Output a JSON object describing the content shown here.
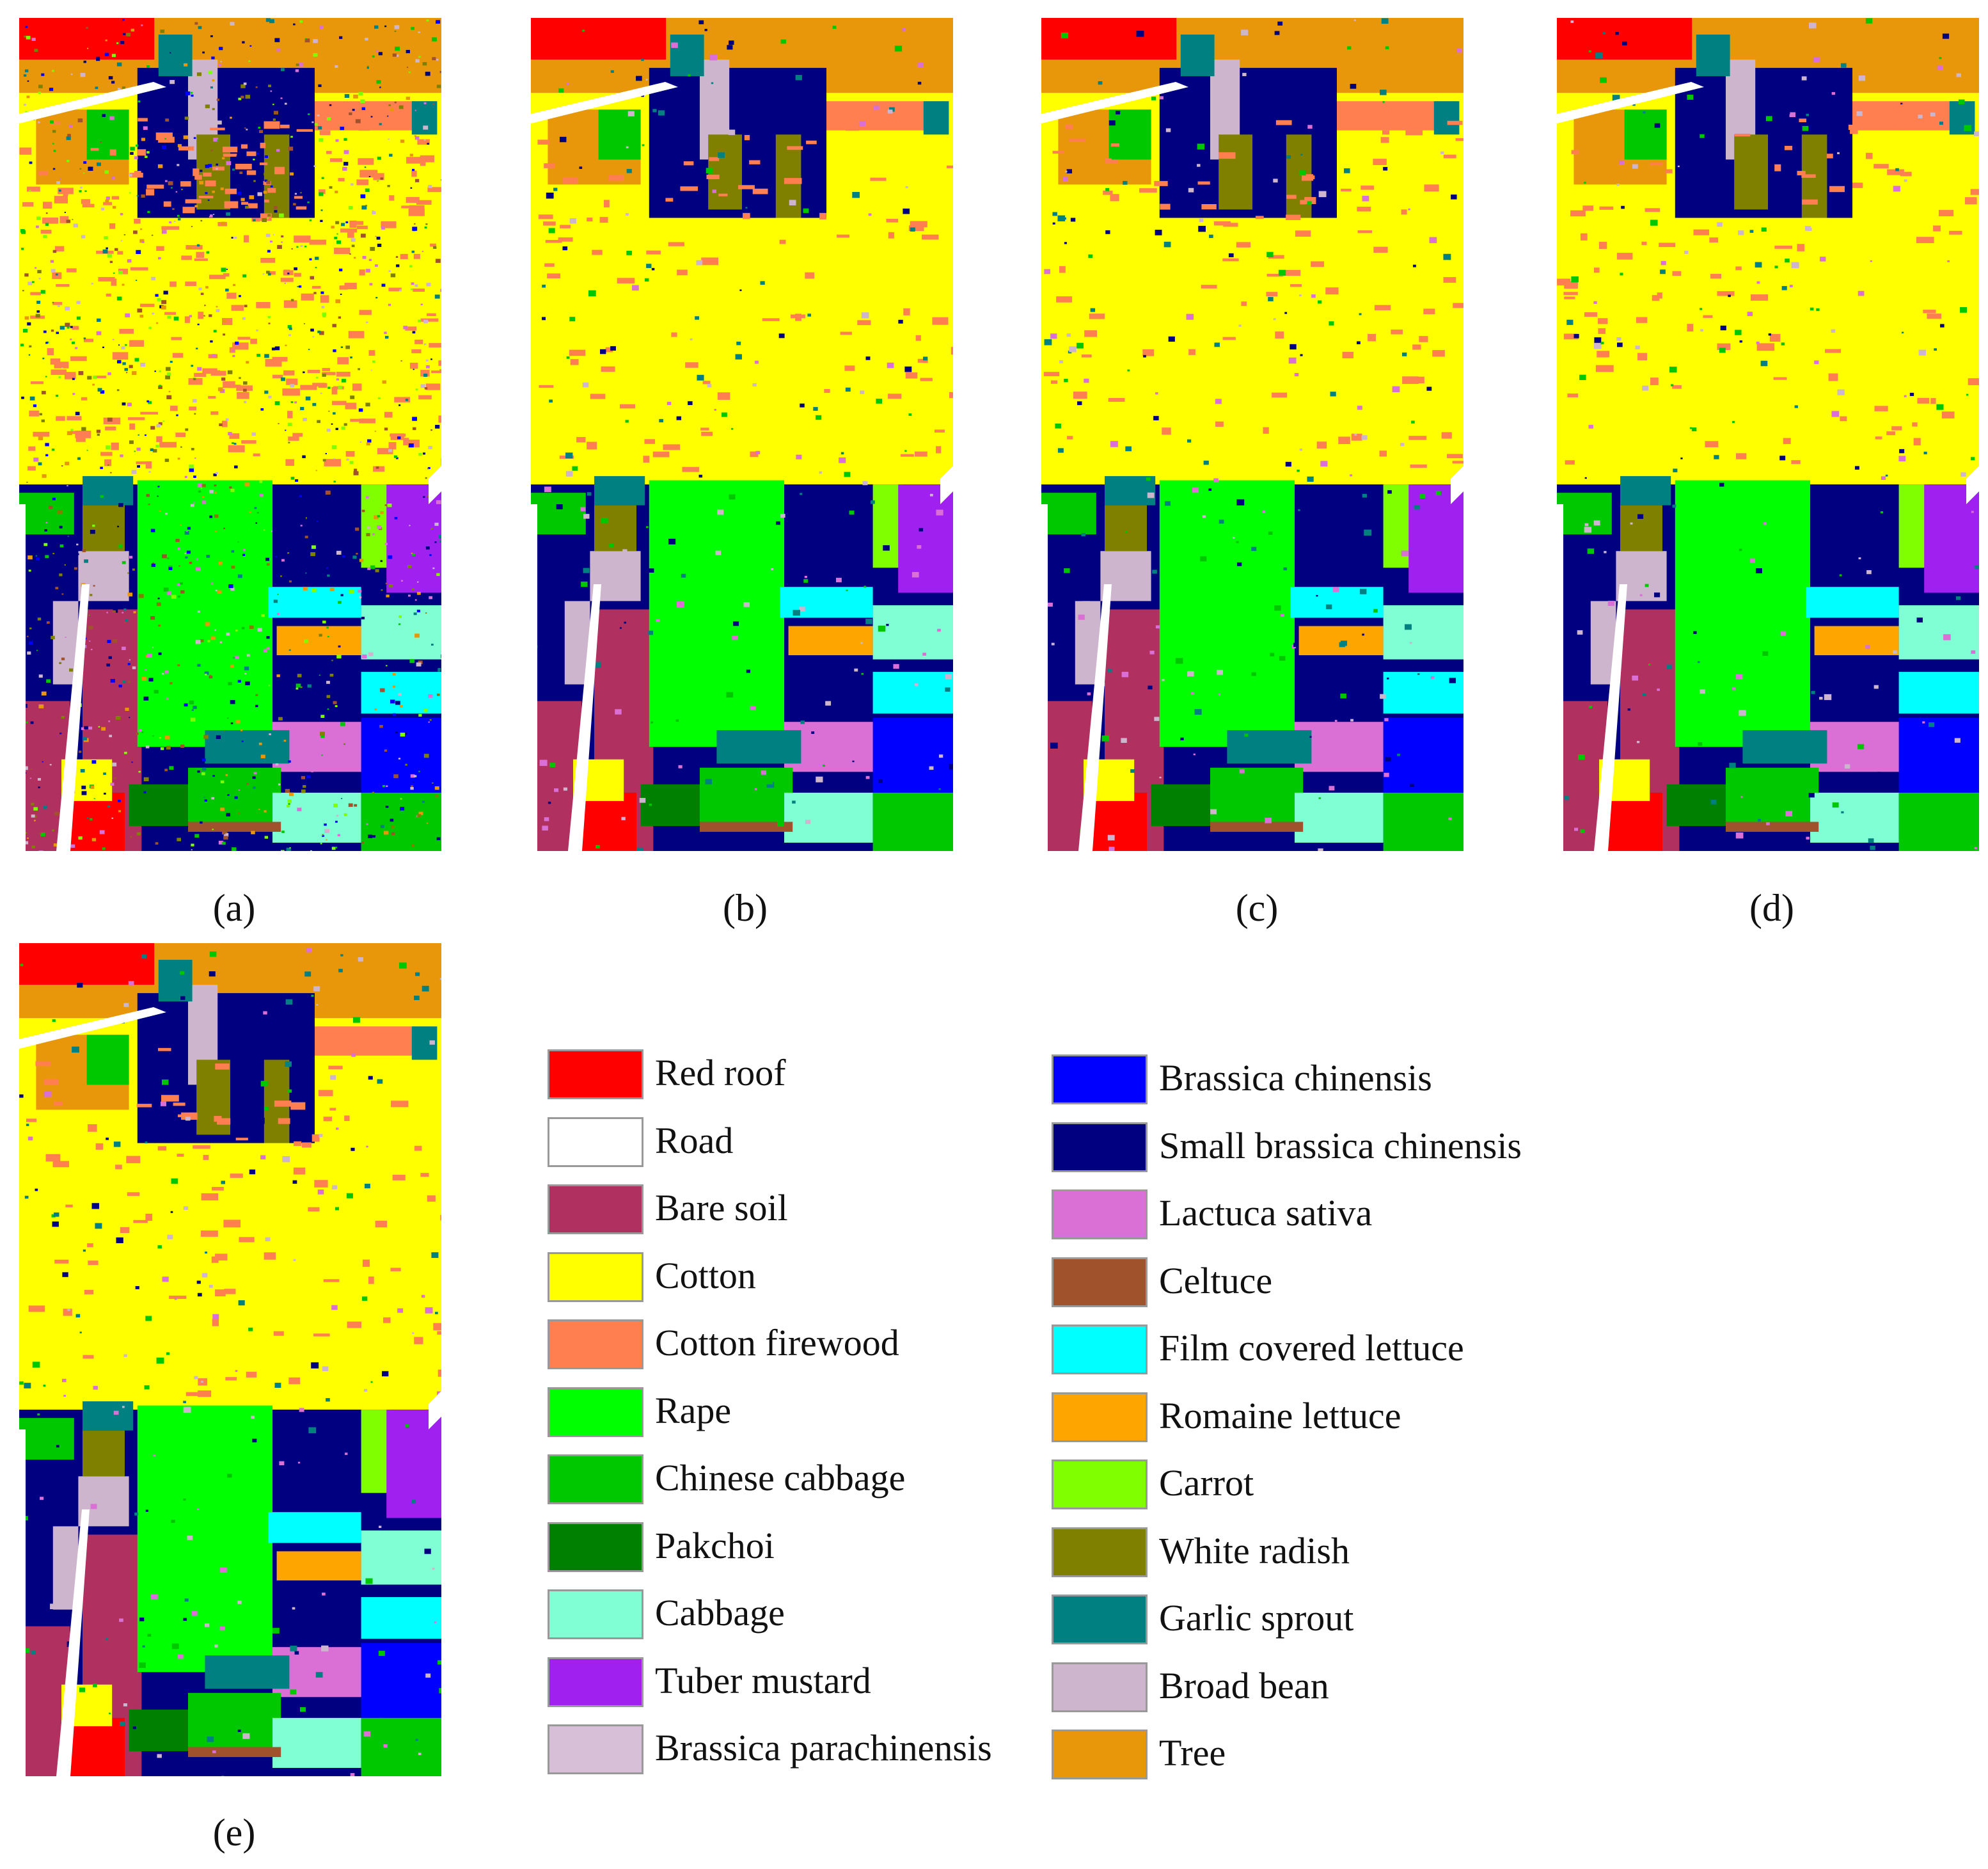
{
  "panels": [
    {
      "label": "(a)",
      "style": "noisy"
    },
    {
      "label": "(b)",
      "style": "clean"
    },
    {
      "label": "(c)",
      "style": "clean"
    },
    {
      "label": "(d)",
      "style": "clean"
    },
    {
      "label": "(e)",
      "style": "clean"
    }
  ],
  "legend": [
    {
      "label": "Red roof",
      "color": "#ff0000"
    },
    {
      "label": "Road",
      "color": "#ffffff"
    },
    {
      "label": "Bare soil",
      "color": "#b03060"
    },
    {
      "label": "Cotton",
      "color": "#ffff00"
    },
    {
      "label": "Cotton firewood",
      "color": "#ff7f50"
    },
    {
      "label": "Rape",
      "color": "#00ff00"
    },
    {
      "label": "Chinese cabbage",
      "color": "#00c800"
    },
    {
      "label": "Pakchoi",
      "color": "#008000"
    },
    {
      "label": "Cabbage",
      "color": "#80ffd4"
    },
    {
      "label": "Tuber mustard",
      "color": "#a020f0"
    },
    {
      "label": "Brassica parachinensis",
      "color": "#d8bfd8"
    },
    {
      "label": "Brassica chinensis",
      "color": "#0000ff"
    },
    {
      "label": "Small brassica chinensis",
      "color": "#000080"
    },
    {
      "label": "Lactuca sativa",
      "color": "#da70d6"
    },
    {
      "label": "Celtuce",
      "color": "#a0522d"
    },
    {
      "label": "Film covered lettuce",
      "color": "#00ffff"
    },
    {
      "label": "Romaine lettuce",
      "color": "#ffa500"
    },
    {
      "label": "Carrot",
      "color": "#7fff00"
    },
    {
      "label": "White radish",
      "color": "#808000"
    },
    {
      "label": "Garlic sprout",
      "color": "#008080"
    },
    {
      "label": "Broad bean",
      "color": "#cdb5cd"
    },
    {
      "label": "Tree",
      "color": "#e8960a"
    }
  ]
}
